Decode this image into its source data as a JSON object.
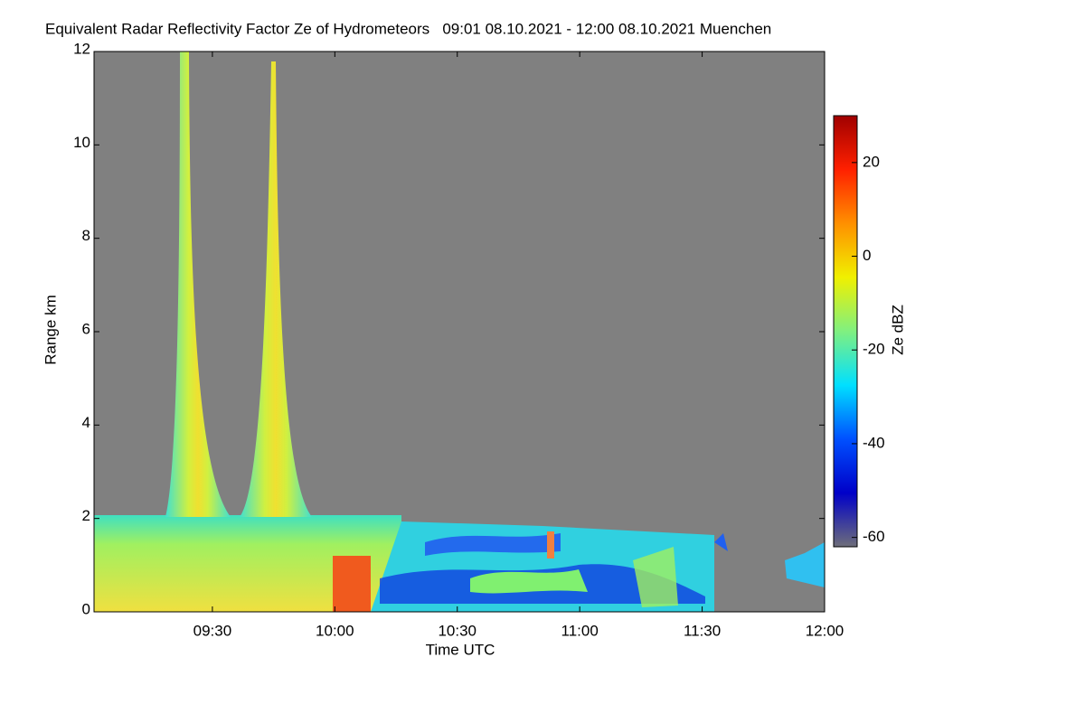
{
  "chart_data": {
    "type": "heatmap",
    "title": "Equivalent Radar Reflectivity Factor Ze of Hydrometeors   09:01 08.10.2021 - 12:00 08.10.2021 Muenchen",
    "x_label": "Time UTC",
    "y_label": "Range km",
    "xlim": [
      541,
      720
    ],
    "xticks": [
      {
        "value": 570,
        "label": "09:30"
      },
      {
        "value": 600,
        "label": "10:00"
      },
      {
        "value": 630,
        "label": "10:30"
      },
      {
        "value": 660,
        "label": "11:00"
      },
      {
        "value": 690,
        "label": "11:30"
      },
      {
        "value": 720,
        "label": "12:00"
      }
    ],
    "ylim": [
      0,
      12
    ],
    "yticks": [
      0,
      2,
      4,
      6,
      8,
      10,
      12
    ],
    "background": "#808080",
    "colorbar": {
      "label": "Ze dBZ",
      "lim": [
        -62,
        30
      ],
      "ticks": [
        -60,
        -40,
        -20,
        0,
        20
      ],
      "colors": [
        "#6e6e7a",
        "#0000c8",
        "#0050ff",
        "#00e0ff",
        "#80f080",
        "#f0f000",
        "#ff9000",
        "#ff2000",
        "#a00000"
      ]
    }
  }
}
